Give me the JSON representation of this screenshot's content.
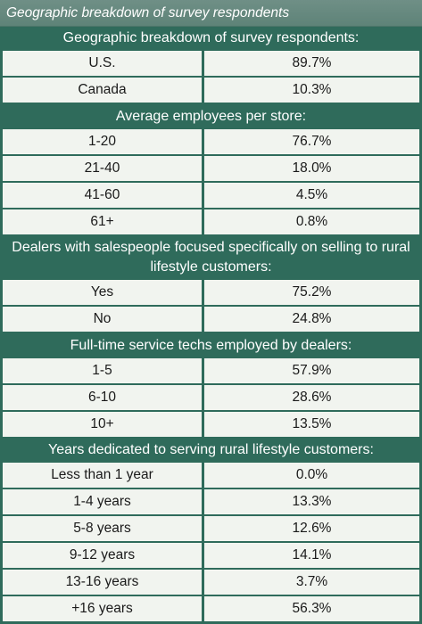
{
  "chart_data": {
    "type": "table",
    "title": "Geographic breakdown of survey respondents",
    "sections": [
      {
        "header": "Geographic breakdown of survey respondents:",
        "rows": [
          {
            "label": "U.S.",
            "value": "89.7%"
          },
          {
            "label": "Canada",
            "value": "10.3%"
          }
        ]
      },
      {
        "header": "Average employees per store:",
        "rows": [
          {
            "label": "1-20",
            "value": "76.7%"
          },
          {
            "label": "21-40",
            "value": "18.0%"
          },
          {
            "label": "41-60",
            "value": "4.5%"
          },
          {
            "label": "61+",
            "value": "0.8%"
          }
        ]
      },
      {
        "header": "Dealers with salespeople focused specifically on selling to rural lifestyle customers:",
        "rows": [
          {
            "label": "Yes",
            "value": "75.2%"
          },
          {
            "label": "No",
            "value": "24.8%"
          }
        ]
      },
      {
        "header": "Full-time service techs employed by dealers:",
        "rows": [
          {
            "label": "1-5",
            "value": "57.9%"
          },
          {
            "label": "6-10",
            "value": "28.6%"
          },
          {
            "label": "10+",
            "value": "13.5%"
          }
        ]
      },
      {
        "header": "Years dedicated to serving rural lifestyle customers:",
        "rows": [
          {
            "label": "Less than 1 year",
            "value": "0.0%"
          },
          {
            "label": "1-4 years",
            "value": "13.3%"
          },
          {
            "label": "5-8 years",
            "value": "12.6%"
          },
          {
            "label": "9-12 years",
            "value": "14.1%"
          },
          {
            "label": "13-16 years",
            "value": "3.7%"
          },
          {
            "label": "+16 years",
            "value": "56.3%"
          }
        ]
      }
    ]
  },
  "colors": {
    "header_background": "#2f6b5b",
    "caption_background": "#5e8378",
    "cell_background": "#f1f4ef",
    "header_text": "#ffffff",
    "cell_text": "#1a1a1a"
  }
}
